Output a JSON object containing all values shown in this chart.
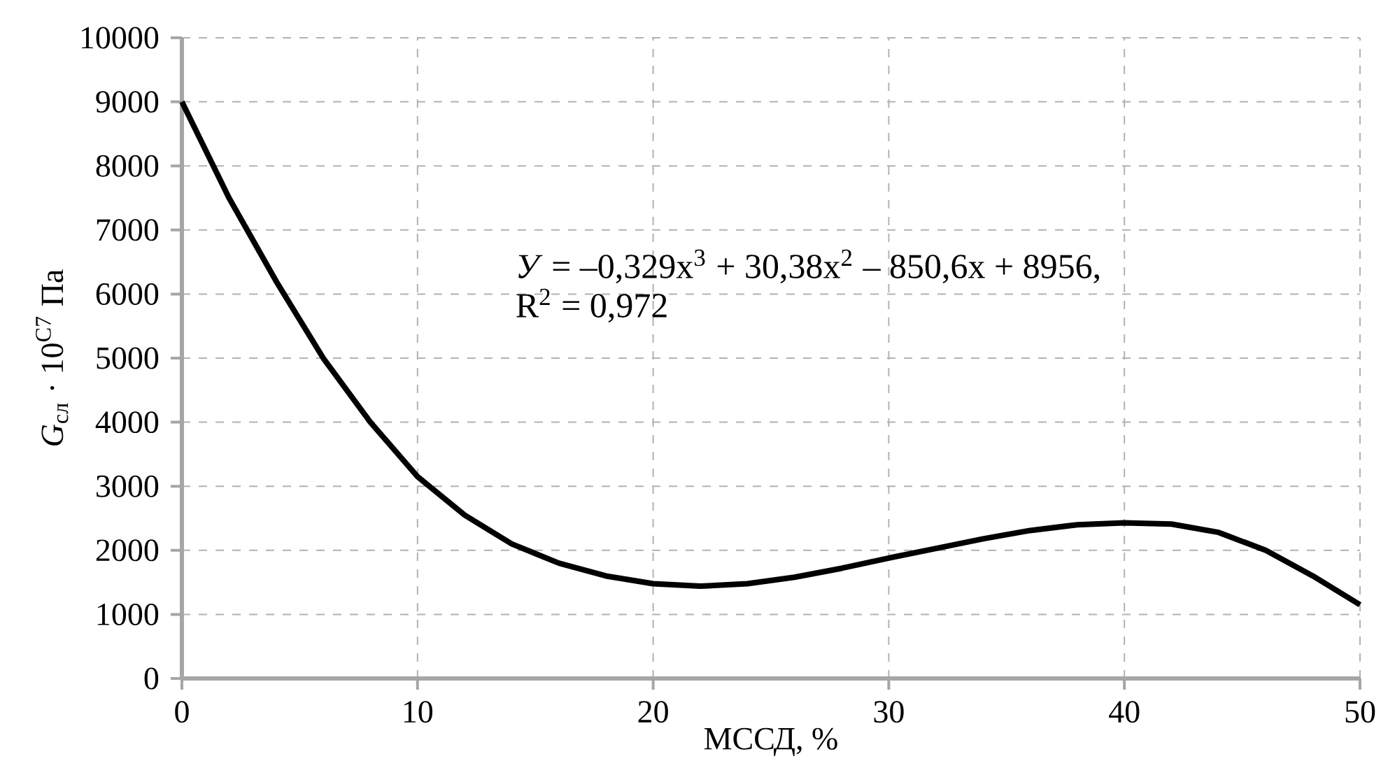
{
  "chart_data": {
    "type": "line",
    "xlabel": "МССД, %",
    "ylabel": "*G*$_{сл}$ · 10$^{С7}$ Па",
    "annotations": [
      "*У* = –0,329x$^{3}$ + 30,38x$^{2}$ – 850,6x + 8956,",
      "R$^{2}$ = 0,972"
    ],
    "x": [
      0,
      2,
      4,
      6,
      8,
      10,
      12,
      14,
      16,
      18,
      20,
      22,
      24,
      26,
      28,
      30,
      32,
      34,
      36,
      38,
      40,
      42,
      44,
      46,
      48,
      50
    ],
    "values": [
      9000,
      7500,
      6200,
      5000,
      4000,
      3150,
      2550,
      2100,
      1800,
      1600,
      1480,
      1440,
      1480,
      1580,
      1720,
      1880,
      2030,
      2180,
      2310,
      2400,
      2430,
      2410,
      2280,
      2000,
      1600,
      1150
    ],
    "color": "#000000",
    "line_style": "solid",
    "xlim": [
      0,
      50
    ],
    "ylim": [
      0,
      10000
    ],
    "xticks": [
      0,
      10,
      20,
      30,
      40,
      50
    ],
    "yticks": [
      0,
      1000,
      2000,
      3000,
      4000,
      5000,
      6000,
      7000,
      8000,
      9000,
      10000
    ],
    "grid": true
  }
}
